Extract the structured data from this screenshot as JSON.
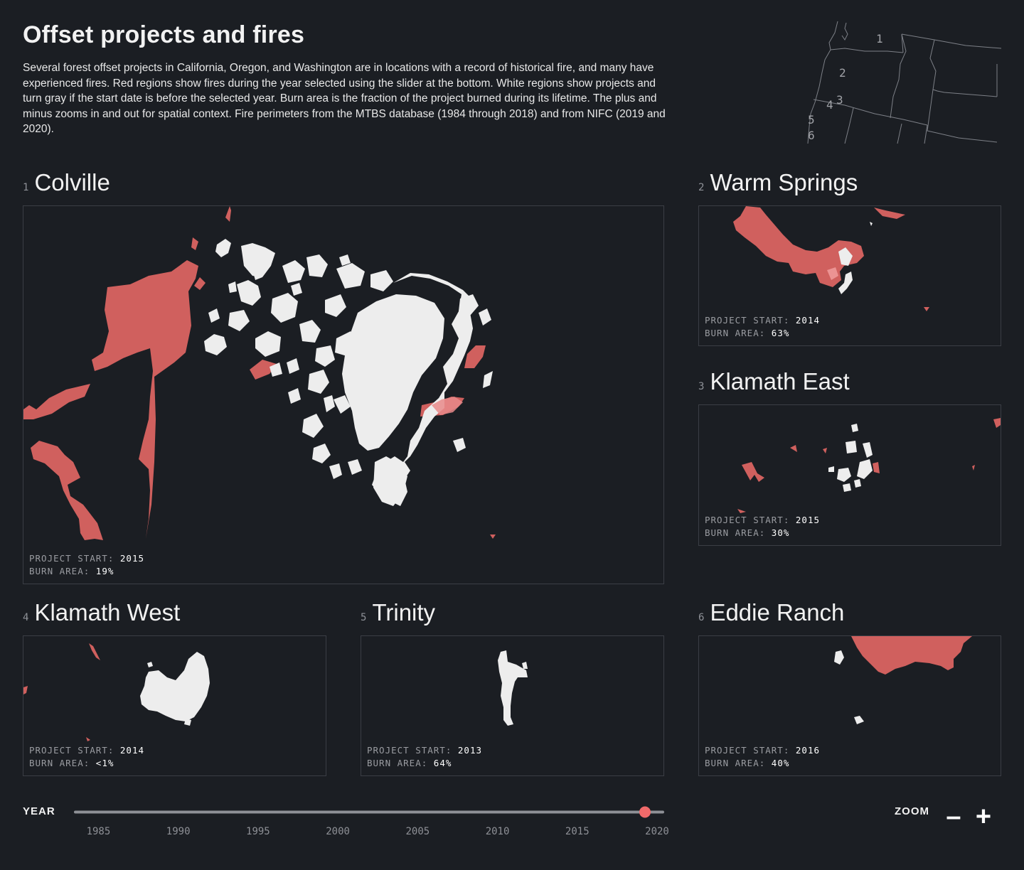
{
  "header": {
    "title": "Offset projects and fires",
    "description": "Several forest offset projects in California, Oregon, and Washington are in locations with a record of historical fire, and many have experienced fires. Red regions show fires during the year selected using the slider at the bottom. White regions show projects and turn gray if the start date is before the selected year. Burn area is the fraction of the project burned during its lifetime. The plus and minus zooms in and out for spatial context. Fire perimeters from the MTBS database (1984 through 2018) and from NIFC (2019 and 2020)."
  },
  "locator_map": {
    "labels": [
      "1",
      "2",
      "3",
      "4",
      "5",
      "6"
    ]
  },
  "stat_labels": {
    "project_start": "PROJECT START:",
    "burn_area": "BURN AREA:"
  },
  "projects": [
    {
      "number": "1",
      "name": "Colville",
      "project_start": "2015",
      "burn_area": "19%"
    },
    {
      "number": "2",
      "name": "Warm Springs",
      "project_start": "2014",
      "burn_area": "63%"
    },
    {
      "number": "3",
      "name": "Klamath East",
      "project_start": "2015",
      "burn_area": "30%"
    },
    {
      "number": "4",
      "name": "Klamath West",
      "project_start": "2014",
      "burn_area": "<1%"
    },
    {
      "number": "5",
      "name": "Trinity",
      "project_start": "2013",
      "burn_area": "64%"
    },
    {
      "number": "6",
      "name": "Eddie Ranch",
      "project_start": "2016",
      "burn_area": "40%"
    }
  ],
  "year_slider": {
    "label": "YEAR",
    "min": 1984,
    "max": 2020,
    "value": 2020,
    "ticks": [
      "1985",
      "1990",
      "1995",
      "2000",
      "2005",
      "2010",
      "2015",
      "2020"
    ]
  },
  "zoom": {
    "label": "ZOOM",
    "minus": "–",
    "plus": "+"
  },
  "colors": {
    "background": "#1b1e23",
    "fire": "#d0605e",
    "project": "#ededed",
    "slider_handle": "#f06a6a",
    "panel_border": "#3b3e45"
  }
}
